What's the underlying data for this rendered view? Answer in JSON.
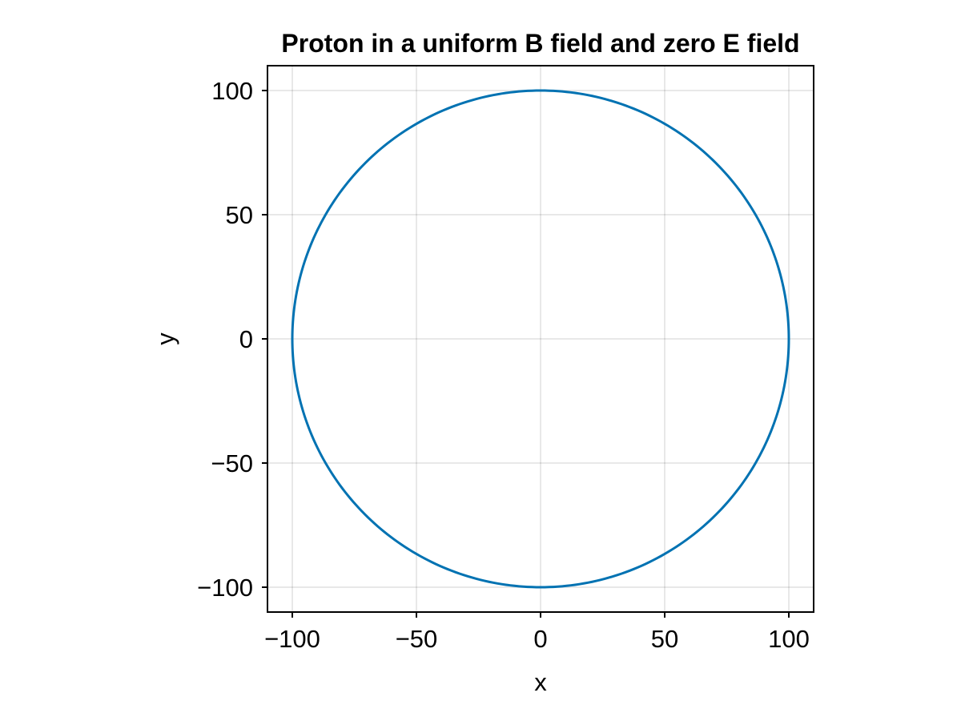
{
  "chart_data": {
    "type": "line",
    "title": "Proton in a uniform B field and zero E field",
    "xlabel": "x",
    "ylabel": "y",
    "xlim": [
      -110,
      110
    ],
    "ylim": [
      -110,
      110
    ],
    "xticks": [
      -100,
      -50,
      0,
      50,
      100
    ],
    "yticks": [
      -100,
      -50,
      0,
      50,
      100
    ],
    "xtick_labels": [
      "−100",
      "−50",
      "0",
      "50",
      "100"
    ],
    "ytick_labels": [
      "−100",
      "−50",
      "0",
      "50",
      "100"
    ],
    "grid": true,
    "aspect": "equal",
    "series": [
      {
        "color": "#0072b2",
        "shape": "circle",
        "center": [
          0,
          0
        ],
        "radius": 100,
        "x": [
          100,
          86.6,
          50,
          0,
          -50,
          -86.6,
          -100,
          -86.6,
          -50,
          0,
          50,
          86.6,
          100
        ],
        "y": [
          0,
          50,
          86.6,
          100,
          86.6,
          50,
          0,
          -50,
          -86.6,
          -100,
          -86.6,
          -50,
          0
        ]
      }
    ]
  }
}
